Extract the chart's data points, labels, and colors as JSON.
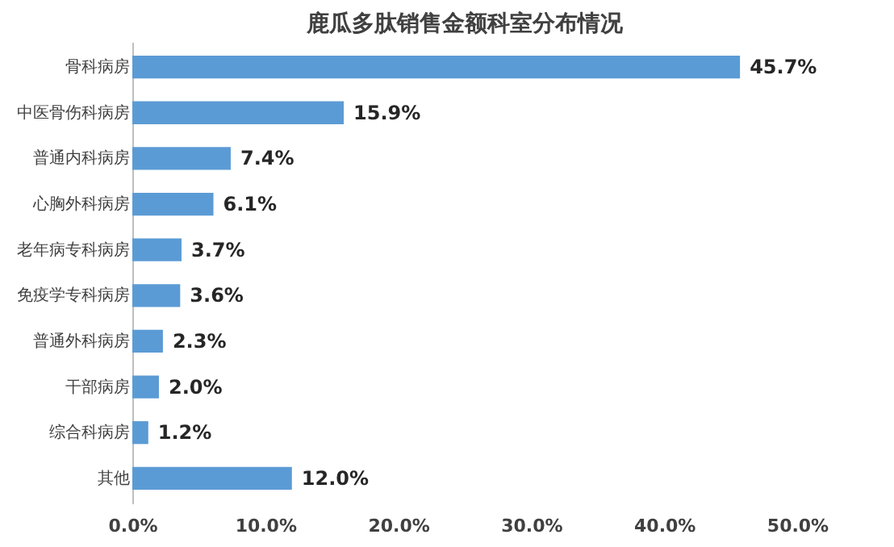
{
  "chart_data": {
    "type": "bar",
    "orientation": "horizontal",
    "title": "鹿瓜多肽销售金额科室分布情况",
    "categories": [
      "骨科病房",
      "中医骨伤科病房",
      "普通内科病房",
      "心胸外科病房",
      "老年病专科病房",
      "免疫学专科病房",
      "普通外科病房",
      "干部病房",
      "综合科病房",
      "其他"
    ],
    "values": [
      45.7,
      15.9,
      7.4,
      6.1,
      3.7,
      3.6,
      2.3,
      2.0,
      1.2,
      12.0
    ],
    "value_labels": [
      "45.7%",
      "15.9%",
      "7.4%",
      "6.1%",
      "3.7%",
      "3.6%",
      "2.3%",
      "2.0%",
      "1.2%",
      "12.0%"
    ],
    "color": "#5b9bd5",
    "xlim": [
      0,
      50
    ],
    "xticks": [
      {
        "value": 0,
        "label": "0.0%"
      },
      {
        "value": 10,
        "label": "10.0%"
      },
      {
        "value": 20,
        "label": "20.0%"
      },
      {
        "value": 30,
        "label": "30.0%"
      },
      {
        "value": 40,
        "label": "40.0%"
      },
      {
        "value": 50,
        "label": "50.0%"
      }
    ],
    "grid": false
  }
}
